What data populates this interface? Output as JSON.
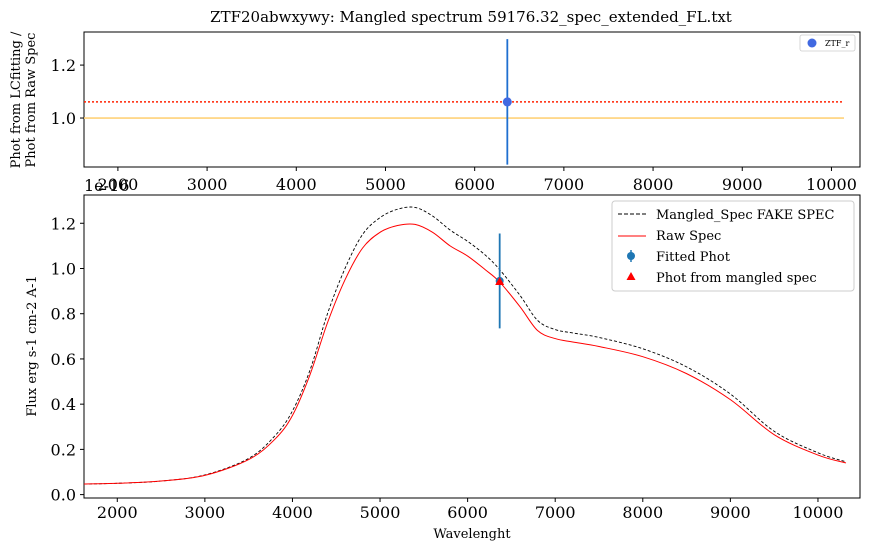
{
  "title": "ZTF20abwxywy: Mangled spectrum 59176.32_spec_extended_FL.txt",
  "chart_data": [
    {
      "type": "scatter",
      "title": "ZTF20abwxywy: Mangled spectrum 59176.32_spec_extended_FL.txt",
      "ylabel_line1": "Phot from LCfitting /",
      "ylabel_line2": "Phot from Raw Spec",
      "xlim": [
        1620,
        10320
      ],
      "ylim": [
        0.815,
        1.325
      ],
      "xticks": [
        2000,
        3000,
        4000,
        5000,
        6000,
        7000,
        8000,
        9000,
        10000
      ],
      "yticks": [
        1.0,
        1.2
      ],
      "series": [
        {
          "name": "ZTF_r",
          "x": [
            6366
          ],
          "y": [
            1.061
          ],
          "yerr": [
            0.237
          ],
          "color": "#4169e1"
        }
      ],
      "hlines": [
        {
          "y": 1.061,
          "color": "#ff2200",
          "style": "dotted"
        },
        {
          "y": 1.0,
          "color": "#ffd27a",
          "style": "solid"
        }
      ],
      "legend_placement": "top-right"
    },
    {
      "type": "line",
      "xlabel": "Wavelenght",
      "ylabel": "Flux erg s-1 cm-2 A-1",
      "offset_text": "1e-16",
      "xlim": [
        1620,
        10480
      ],
      "ylim": [
        -0.015,
        1.325
      ],
      "xticks": [
        2000,
        3000,
        4000,
        5000,
        6000,
        7000,
        8000,
        9000,
        10000
      ],
      "yticks": [
        0.0,
        0.2,
        0.4,
        0.6,
        0.8,
        1.0,
        1.2
      ],
      "legend_placement": "top-right",
      "legend": [
        "Mangled_Spec FAKE SPEC",
        "Raw Spec",
        "Fitted Phot",
        "Phot from mangled spec"
      ],
      "series": [
        {
          "name": "Mangled_Spec FAKE SPEC",
          "color": "#000000",
          "style": "dashed",
          "x": [
            1620,
            2000,
            2500,
            3000,
            3500,
            3800,
            4000,
            4200,
            4400,
            4600,
            4800,
            5000,
            5200,
            5400,
            5600,
            5800,
            6000,
            6200,
            6366,
            6600,
            6800,
            7000,
            7200,
            7500,
            8000,
            8500,
            9000,
            9500,
            10000,
            10320
          ],
          "y": [
            0.047,
            0.05,
            0.06,
            0.087,
            0.16,
            0.26,
            0.37,
            0.55,
            0.8,
            1.0,
            1.15,
            1.225,
            1.262,
            1.27,
            1.232,
            1.17,
            1.12,
            1.06,
            0.995,
            0.88,
            0.77,
            0.73,
            0.715,
            0.695,
            0.645,
            0.565,
            0.445,
            0.28,
            0.185,
            0.145
          ]
        },
        {
          "name": "Raw Spec",
          "color": "#ff0000",
          "style": "solid",
          "x": [
            1620,
            2000,
            2500,
            3000,
            3500,
            3800,
            4000,
            4200,
            4400,
            4600,
            4800,
            5000,
            5200,
            5400,
            5600,
            5800,
            6000,
            6200,
            6366,
            6600,
            6800,
            7000,
            7200,
            7500,
            8000,
            8500,
            9000,
            9500,
            10000,
            10320
          ],
          "y": [
            0.047,
            0.05,
            0.06,
            0.085,
            0.155,
            0.245,
            0.35,
            0.53,
            0.76,
            0.95,
            1.09,
            1.16,
            1.19,
            1.195,
            1.16,
            1.1,
            1.055,
            0.995,
            0.94,
            0.83,
            0.725,
            0.69,
            0.675,
            0.655,
            0.61,
            0.535,
            0.42,
            0.265,
            0.175,
            0.14
          ]
        }
      ],
      "points": [
        {
          "name": "Fitted Phot",
          "x": 6366,
          "y": 0.945,
          "yerr": 0.21,
          "color": "#1f77b4",
          "marker": "circle"
        },
        {
          "name": "Phot from mangled spec",
          "x": 6366,
          "y": 0.94,
          "color": "#ff0000",
          "marker": "triangle"
        }
      ]
    }
  ]
}
